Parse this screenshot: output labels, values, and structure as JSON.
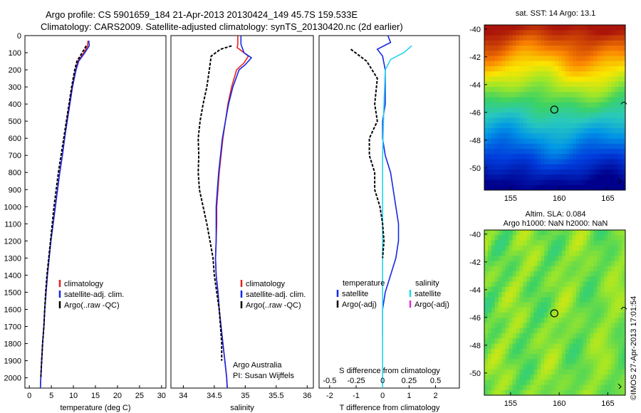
{
  "header": {
    "line1": "Argo profile: CS 5901659_184 21-Apr-2013 20130424_149 45.7S 159.533E",
    "line2": "Climatology: CARS2009. Satellite-adjusted climatology: synTS_20130420.nc (2d earlier)"
  },
  "colors": {
    "climatology": "#e8201a",
    "satellite": "#1428e6",
    "argo": "#000000",
    "salinity_satellite": "#22d4f0",
    "salinity_argo": "#e030d8"
  },
  "chart_data": [
    {
      "type": "line",
      "id": "temperature",
      "xlabel": "temperature (deg C)",
      "xlim": [
        -1,
        31
      ],
      "xticks": [
        0,
        5,
        10,
        15,
        20,
        25,
        30
      ],
      "ylim": [
        2060,
        0
      ],
      "yticks": [
        0,
        100,
        200,
        300,
        400,
        500,
        600,
        700,
        800,
        900,
        1000,
        1100,
        1200,
        1300,
        1400,
        1500,
        1600,
        1700,
        1800,
        1900,
        2000
      ],
      "legend": [
        "climatology",
        "satellite-adj. clim.",
        "Argo(..raw -QC)"
      ],
      "series": [
        {
          "name": "climatology",
          "color_key": "climatology",
          "points": [
            [
              13.3,
              30
            ],
            [
              13.2,
              60
            ],
            [
              12.4,
              100
            ],
            [
              11.0,
              150
            ],
            [
              10.5,
              200
            ],
            [
              9.7,
              300
            ],
            [
              9.1,
              400
            ],
            [
              8.5,
              500
            ],
            [
              8.0,
              600
            ],
            [
              7.5,
              700
            ],
            [
              6.9,
              800
            ],
            [
              6.4,
              900
            ],
            [
              5.9,
              1000
            ],
            [
              5.4,
              1100
            ],
            [
              4.9,
              1200
            ],
            [
              4.5,
              1300
            ],
            [
              4.1,
              1400
            ],
            [
              3.8,
              1500
            ],
            [
              3.5,
              1600
            ],
            [
              3.3,
              1700
            ],
            [
              3.0,
              1800
            ],
            [
              2.8,
              1900
            ],
            [
              2.6,
              2000
            ],
            [
              2.5,
              2060
            ]
          ]
        },
        {
          "name": "satellite-adj. clim.",
          "color_key": "satellite",
          "points": [
            [
              13.5,
              30
            ],
            [
              13.6,
              60
            ],
            [
              12.6,
              100
            ],
            [
              11.2,
              150
            ],
            [
              10.6,
              200
            ],
            [
              9.8,
              300
            ],
            [
              9.2,
              400
            ],
            [
              8.6,
              500
            ],
            [
              8.0,
              600
            ],
            [
              7.5,
              700
            ],
            [
              6.9,
              800
            ],
            [
              6.4,
              900
            ],
            [
              5.9,
              1000
            ],
            [
              5.4,
              1100
            ],
            [
              4.9,
              1200
            ],
            [
              4.5,
              1300
            ],
            [
              4.1,
              1400
            ],
            [
              3.8,
              1500
            ],
            [
              3.5,
              1600
            ],
            [
              3.3,
              1700
            ],
            [
              3.0,
              1800
            ],
            [
              2.8,
              1900
            ],
            [
              2.6,
              2000
            ],
            [
              2.5,
              2060
            ]
          ]
        },
        {
          "name": "Argo(..raw -QC)",
          "color_key": "argo",
          "dashed": true,
          "points": [
            [
              12.9,
              60
            ],
            [
              12.0,
              100
            ],
            [
              10.8,
              150
            ],
            [
              10.3,
              200
            ],
            [
              9.6,
              300
            ],
            [
              9.0,
              400
            ],
            [
              8.4,
              500
            ],
            [
              7.8,
              600
            ],
            [
              7.2,
              700
            ],
            [
              6.6,
              800
            ],
            [
              6.1,
              900
            ],
            [
              5.6,
              1000
            ],
            [
              5.2,
              1100
            ],
            [
              4.8,
              1200
            ],
            [
              4.4,
              1300
            ],
            [
              4.0,
              1400
            ],
            [
              3.7,
              1500
            ],
            [
              3.5,
              1600
            ],
            [
              3.3,
              1700
            ],
            [
              3.0,
              1800
            ],
            [
              2.8,
              1900
            ],
            [
              2.6,
              2000
            ]
          ]
        }
      ]
    },
    {
      "type": "line",
      "id": "salinity",
      "xlabel": "salinity",
      "xlim": [
        33.8,
        36.1
      ],
      "xticks": [
        34,
        34.5,
        35,
        35.5,
        36
      ],
      "ylim": [
        2060,
        0
      ],
      "legend": [
        "climatology",
        "satellite-adj. clim.",
        "Argo(..raw -QC)"
      ],
      "annotation": [
        "Argo Australia",
        "PI: Susan Wijffels"
      ],
      "series": [
        {
          "name": "climatology",
          "color_key": "climatology",
          "points": [
            [
              34.88,
              0
            ],
            [
              34.88,
              50
            ],
            [
              34.87,
              70
            ],
            [
              35.05,
              120
            ],
            [
              34.98,
              160
            ],
            [
              34.86,
              200
            ],
            [
              34.78,
              300
            ],
            [
              34.72,
              400
            ],
            [
              34.68,
              500
            ],
            [
              34.64,
              600
            ],
            [
              34.61,
              700
            ],
            [
              34.58,
              800
            ],
            [
              34.56,
              900
            ],
            [
              34.54,
              1000
            ],
            [
              34.54,
              1100
            ],
            [
              34.53,
              1200
            ],
            [
              34.52,
              1300
            ],
            [
              34.53,
              1400
            ],
            [
              34.56,
              1500
            ],
            [
              34.58,
              1600
            ],
            [
              34.61,
              1700
            ],
            [
              34.64,
              1800
            ],
            [
              34.67,
              1900
            ],
            [
              34.7,
              2000
            ],
            [
              34.71,
              2060
            ]
          ]
        },
        {
          "name": "satellite-adj. clim.",
          "color_key": "satellite",
          "points": [
            [
              34.93,
              0
            ],
            [
              34.93,
              50
            ],
            [
              34.98,
              100
            ],
            [
              35.1,
              130
            ],
            [
              35.0,
              170
            ],
            [
              34.9,
              200
            ],
            [
              34.8,
              300
            ],
            [
              34.73,
              400
            ],
            [
              34.68,
              500
            ],
            [
              34.63,
              600
            ],
            [
              34.6,
              700
            ],
            [
              34.57,
              800
            ],
            [
              34.55,
              900
            ],
            [
              34.53,
              1000
            ],
            [
              34.53,
              1100
            ],
            [
              34.53,
              1200
            ],
            [
              34.52,
              1300
            ],
            [
              34.53,
              1400
            ],
            [
              34.56,
              1500
            ],
            [
              34.58,
              1600
            ],
            [
              34.61,
              1700
            ],
            [
              34.64,
              1800
            ],
            [
              34.67,
              1900
            ],
            [
              34.7,
              2000
            ],
            [
              34.71,
              2060
            ]
          ]
        },
        {
          "name": "Argo(..raw -QC)",
          "color_key": "argo",
          "dashed": true,
          "points": [
            [
              34.78,
              60
            ],
            [
              34.6,
              80
            ],
            [
              34.45,
              120
            ],
            [
              34.42,
              200
            ],
            [
              34.38,
              300
            ],
            [
              34.32,
              400
            ],
            [
              34.27,
              500
            ],
            [
              34.24,
              600
            ],
            [
              34.25,
              700
            ],
            [
              34.24,
              800
            ],
            [
              34.26,
              900
            ],
            [
              34.32,
              1000
            ],
            [
              34.38,
              1100
            ],
            [
              34.43,
              1200
            ],
            [
              34.48,
              1300
            ],
            [
              34.5,
              1400
            ],
            [
              34.54,
              1500
            ],
            [
              34.58,
              1600
            ],
            [
              34.6,
              1700
            ],
            [
              34.62,
              1800
            ],
            [
              34.62,
              1900
            ]
          ]
        }
      ]
    },
    {
      "type": "line",
      "id": "difference",
      "xlabel_bottom": "T difference from climatology",
      "xlabel_top": "S difference from climatology",
      "xlim": [
        -2.4,
        2.9
      ],
      "xticks": [
        -2,
        -1,
        0,
        1,
        2
      ],
      "top_ticks": [
        -0.5,
        -0.25,
        0,
        0.25,
        0.5
      ],
      "ylim": [
        2060,
        0
      ],
      "legend_temperature": {
        "title": "temperature",
        "items": [
          "satellite",
          "Argo(-adj)"
        ]
      },
      "legend_salinity": {
        "title": "salinity",
        "items": [
          "satellite",
          "Argo(-adj)"
        ]
      },
      "series": [
        {
          "name": "temperature satellite",
          "color_key": "satellite",
          "points": [
            [
              0.2,
              0
            ],
            [
              0.3,
              40
            ],
            [
              -0.2,
              80
            ],
            [
              0.0,
              120
            ],
            [
              0.1,
              200
            ],
            [
              0.1,
              400
            ],
            [
              0.0,
              500
            ],
            [
              0.0,
              600
            ],
            [
              0.1,
              700
            ],
            [
              0.3,
              800
            ],
            [
              0.4,
              900
            ],
            [
              0.5,
              1000
            ],
            [
              0.6,
              1100
            ],
            [
              0.6,
              1200
            ],
            [
              0.5,
              1300
            ],
            [
              0.3,
              1400
            ],
            [
              0.1,
              1500
            ],
            [
              0.0,
              1600
            ],
            [
              0.0,
              1700
            ],
            [
              0.0,
              1750
            ]
          ]
        },
        {
          "name": "salinity satellite",
          "color_key": "salinity_satellite",
          "points": [
            [
              1.1,
              60
            ],
            [
              0.8,
              100
            ],
            [
              0.3,
              140
            ],
            [
              0.1,
              200
            ],
            [
              0.05,
              400
            ],
            [
              0.0,
              700
            ],
            [
              0.0,
              1000
            ],
            [
              0.0,
              1300
            ],
            [
              0.0,
              1600
            ],
            [
              0.0,
              2060
            ]
          ]
        },
        {
          "name": "temperature Argo(-adj)",
          "color_key": "argo",
          "dashed": true,
          "points": [
            [
              -1.2,
              80
            ],
            [
              -0.6,
              150
            ],
            [
              -0.2,
              250
            ],
            [
              -0.3,
              400
            ],
            [
              -0.2,
              500
            ],
            [
              -0.5,
              600
            ],
            [
              -0.5,
              700
            ],
            [
              -0.3,
              800
            ],
            [
              -0.3,
              900
            ],
            [
              -0.1,
              1000
            ],
            [
              0.0,
              1100
            ],
            [
              0.05,
              1200
            ],
            [
              0.0,
              1300
            ]
          ]
        }
      ]
    },
    {
      "type": "heatmap",
      "id": "sst-map",
      "title": "sat. SST: 14 Argo: 13.1",
      "xticks": [
        155,
        160,
        165
      ],
      "yticks": [
        -40,
        -42,
        -44,
        -46,
        -48,
        -50
      ],
      "xlim": [
        152.3,
        166.8
      ],
      "ylim": [
        -51.6,
        -39.7
      ],
      "marker": [
        159.5,
        -45.8
      ]
    },
    {
      "type": "heatmap",
      "id": "sla-map",
      "title_line1": "Altim. SLA: 0.084",
      "title_line2": "Argo h1000: NaN h2000: NaN",
      "xticks": [
        155,
        160,
        165
      ],
      "yticks": [
        -40,
        -42,
        -44,
        -46,
        -48,
        -50
      ],
      "xlim": [
        152.3,
        166.8
      ],
      "ylim": [
        -51.6,
        -39.7
      ],
      "marker": [
        159.5,
        -45.7
      ]
    }
  ],
  "stamp": "©IMOS 27-Apr-2013 17:01:54"
}
